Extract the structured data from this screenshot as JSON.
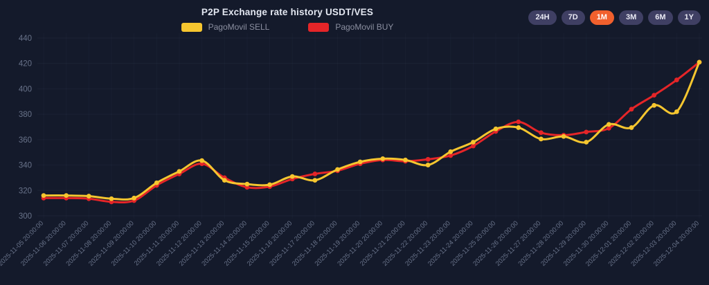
{
  "header": {
    "title": "P2P Exchange rate history USDT/VES"
  },
  "time_range": {
    "options": [
      "24H",
      "7D",
      "1M",
      "3M",
      "6M",
      "1Y"
    ],
    "active": "1M",
    "active_color": "#f1602d",
    "button_color": "#3f3f63"
  },
  "colors": {
    "background": "#141a2b",
    "axis_text": "#69738a",
    "grid_line": "#7d91b9",
    "sell": "#f6c62f",
    "buy": "#e52528"
  },
  "chart_data": {
    "type": "line",
    "title": "P2P Exchange rate history USDT/VES",
    "legend_position": "top",
    "grid": true,
    "ylim": [
      300,
      440
    ],
    "yticks": [
      300,
      320,
      340,
      360,
      380,
      400,
      420,
      440
    ],
    "x": [
      "2025-11-05 20:00:00",
      "2025-11-06 20:00:00",
      "2025-11-07 20:00:00",
      "2025-11-08 20:00:00",
      "2025-11-09 20:00:00",
      "2025-11-10 20:00:00",
      "2025-11-11 20:00:00",
      "2025-11-12 20:00:00",
      "2025-11-13 20:00:00",
      "2025-11-14 20:00:00",
      "2025-11-15 20:00:00",
      "2025-11-16 20:00:00",
      "2025-11-17 20:00:00",
      "2025-11-18 20:00:00",
      "2025-11-19 20:00:00",
      "2025-11-20 20:00:00",
      "2025-11-21 20:00:00",
      "2025-11-22 20:00:00",
      "2025-11-23 20:00:00",
      "2025-11-24 20:00:00",
      "2025-11-25 20:00:00",
      "2025-11-26 20:00:00",
      "2025-11-27 20:00:00",
      "2025-11-28 20:00:00",
      "2025-11-29 20:00:00",
      "2025-11-30 20:00:00",
      "2025-12-01 20:00:00",
      "2025-12-02 20:00:00",
      "2025-12-03 20:00:00",
      "2025-12-04 20:00:00"
    ],
    "series": [
      {
        "name": "PagoMovil SELL",
        "color": "#f6c62f",
        "values": [
          316,
          316,
          315.5,
          313.5,
          314,
          326,
          335,
          343.5,
          328,
          325,
          324.5,
          331,
          328,
          336.5,
          342.5,
          345,
          344,
          340,
          350.5,
          358,
          368.5,
          369.5,
          360.5,
          362.5,
          358,
          372,
          369.5,
          387,
          382,
          421
        ]
      },
      {
        "name": "PagoMovil BUY",
        "color": "#e52528",
        "values": [
          314,
          314,
          313.5,
          311,
          312,
          324,
          333,
          341,
          330,
          322.5,
          323,
          329,
          333,
          335.5,
          341,
          344,
          343,
          344.5,
          347.5,
          355,
          366.5,
          374,
          365.5,
          363.5,
          366,
          369,
          384,
          395,
          407,
          421
        ]
      }
    ]
  }
}
